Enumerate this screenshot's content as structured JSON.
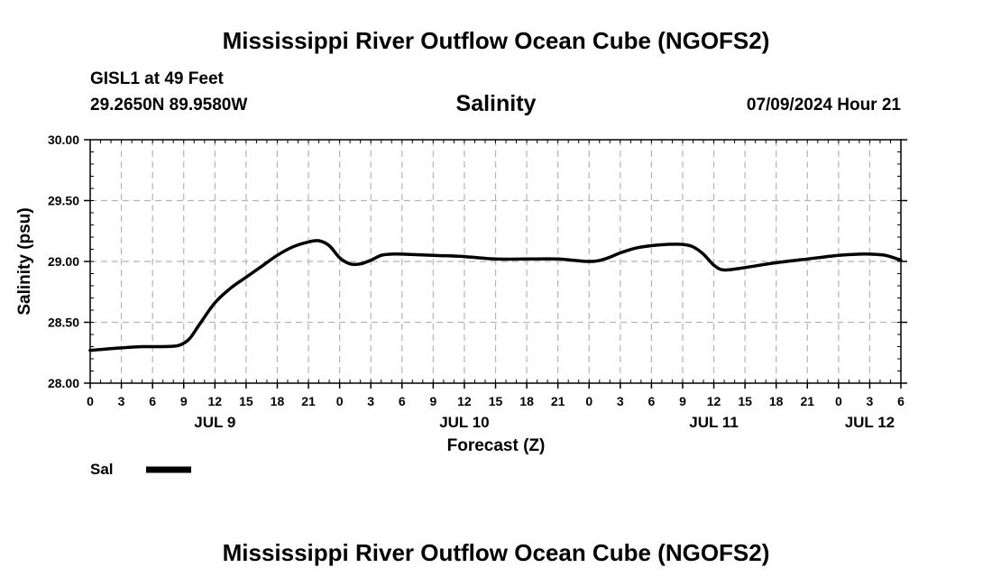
{
  "header": {
    "title": "Mississippi River Outflow Ocean Cube (NGOFS2)",
    "station": "GISL1 at 49 Feet",
    "coordinates": "29.2650N  89.9580W",
    "datetime": "07/09/2024 Hour 21"
  },
  "footer": {
    "title": "Mississippi River Outflow Ocean Cube (NGOFS2)"
  },
  "chart_data": {
    "type": "line",
    "title": "Salinity",
    "xlabel": "Forecast (Z)",
    "ylabel": "Salinity (psu)",
    "x_unit": "hours from JUL 9 00Z",
    "xlim": [
      0,
      78
    ],
    "ylim": [
      28.0,
      30.0
    ],
    "grid": true,
    "y_ticks": [
      "28.00",
      "28.50",
      "29.00",
      "29.50",
      "30.00"
    ],
    "x_tick_hours": [
      0,
      3,
      6,
      9,
      12,
      15,
      18,
      21,
      24,
      27,
      30,
      33,
      36,
      39,
      42,
      45,
      48,
      51,
      54,
      57,
      60,
      63,
      66,
      69,
      72,
      75,
      78
    ],
    "x_tick_labels": [
      "0",
      "3",
      "6",
      "9",
      "12",
      "15",
      "18",
      "21",
      "0",
      "3",
      "6",
      "9",
      "12",
      "15",
      "18",
      "21",
      "0",
      "3",
      "6",
      "9",
      "12",
      "15",
      "18",
      "21",
      "0",
      "3",
      "6"
    ],
    "day_labels": [
      {
        "hour": 12,
        "label": "JUL 9"
      },
      {
        "hour": 36,
        "label": "JUL 10"
      },
      {
        "hour": 60,
        "label": "JUL 11"
      },
      {
        "hour": 75,
        "label": "JUL 12"
      }
    ],
    "legend": {
      "position": "bottom-left",
      "entries": [
        {
          "name": "Sal",
          "color": "#000000"
        }
      ]
    },
    "series": [
      {
        "name": "Sal",
        "color": "#000000",
        "x": [
          0,
          3,
          5,
          7,
          8.5,
          9.5,
          10.5,
          12,
          13.5,
          15,
          16.5,
          18,
          19.5,
          21,
          22,
          23,
          24,
          25,
          26,
          27,
          28,
          29,
          30,
          33,
          36,
          39,
          42,
          45,
          48,
          49.5,
          51,
          52.5,
          54,
          55.5,
          57,
          58,
          59,
          60,
          61,
          63,
          66,
          69,
          72,
          74,
          75,
          76.5,
          78
        ],
        "values": [
          28.27,
          28.29,
          28.3,
          28.3,
          28.31,
          28.36,
          28.48,
          28.66,
          28.78,
          28.87,
          28.96,
          29.05,
          29.12,
          29.16,
          29.17,
          29.13,
          29.03,
          28.98,
          28.98,
          29.01,
          29.05,
          29.06,
          29.06,
          29.05,
          29.04,
          29.02,
          29.02,
          29.02,
          29.0,
          29.02,
          29.07,
          29.11,
          29.13,
          29.14,
          29.14,
          29.12,
          29.06,
          28.97,
          28.93,
          28.95,
          28.99,
          29.02,
          29.05,
          29.06,
          29.06,
          29.05,
          29.01
        ]
      }
    ]
  }
}
